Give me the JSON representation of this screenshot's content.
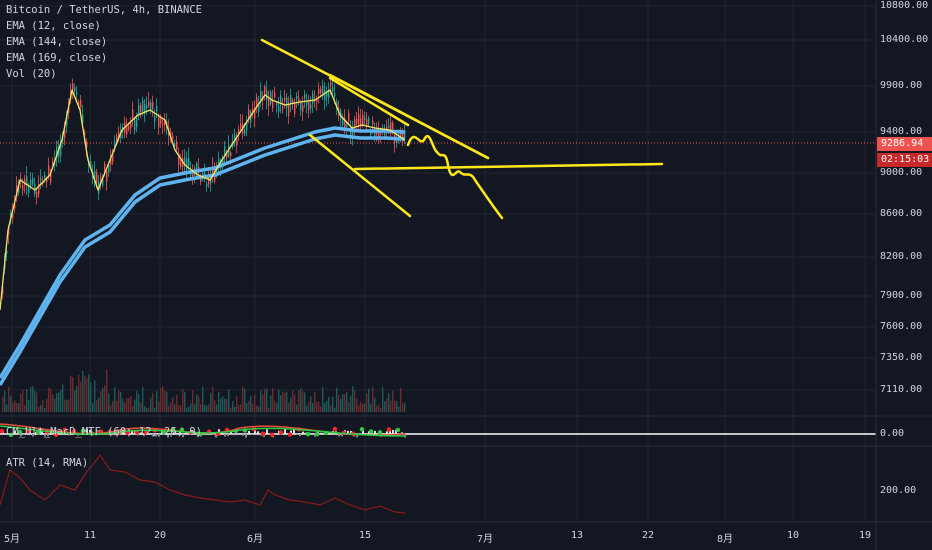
{
  "legend": {
    "symbol": "Bitcoin / TetherUS, 4h, BINANCE",
    "ema12": "EMA (12, close)",
    "ema144": "EMA (144, close)",
    "ema169": "EMA (169, close)",
    "vol": "Vol (20)"
  },
  "indicators": {
    "macd_label": "CM_Ult_MacD_MTF (60, 12, 26, 9)",
    "atr_label": "ATR (14, RMA)"
  },
  "price_axis": {
    "ticks": [
      "10800.00",
      "10400.00",
      "9900.00",
      "9400.00",
      "9000.00",
      "8600.00",
      "8200.00",
      "7900.00",
      "7600.00",
      "7350.00",
      "7110.00"
    ],
    "current_price": "9286.94",
    "countdown": "02:15:03"
  },
  "macd_axis": {
    "ticks": [
      "0.00"
    ]
  },
  "atr_axis": {
    "ticks": [
      "200.00"
    ]
  },
  "time_axis": {
    "ticks": [
      "5月",
      "11",
      "20",
      "6月",
      "15",
      "7月",
      "13",
      "22",
      "8月",
      "10",
      "19"
    ]
  },
  "colors": {
    "background": "#131722",
    "up": "#26a69a",
    "down": "#ef5350",
    "ema12": "#f5e663",
    "ema144": "#5fb4ef",
    "drawing": "#ffe81a",
    "atr": "#8b1a1a",
    "price_badge": "#ef5350"
  },
  "chart_data": {
    "type": "candlestick",
    "title": "Bitcoin / TetherUS, 4h, BINANCE",
    "x_ticks": [
      "5月",
      "11",
      "20",
      "6月",
      "15",
      "7月",
      "13",
      "22",
      "8月",
      "10",
      "19"
    ],
    "y_ticks": [
      10800,
      10400,
      9900,
      9400,
      9000,
      8600,
      8200,
      7900,
      7600,
      7350,
      7110
    ],
    "current_price": 9286.94,
    "series": [
      {
        "name": "EMA (12, close)",
        "values": [
          7700,
          8600,
          9300,
          9700,
          9500,
          8700,
          9400,
          9600,
          9300,
          9100,
          8900,
          9200,
          9600,
          10300,
          9700,
          9800,
          9700,
          9800,
          9300,
          9350,
          9300
        ]
      },
      {
        "name": "EMA (144, close)",
        "values": [
          7150,
          7600,
          8150,
          8400,
          8700,
          8850,
          9000,
          9050,
          9100,
          9150,
          9200,
          9280,
          9380,
          9450,
          9380,
          9400,
          9420
        ]
      },
      {
        "name": "EMA (169, close)",
        "values": [
          7100,
          7550,
          8100,
          8350,
          8650,
          8800,
          8950,
          9000,
          9060,
          9110,
          9170,
          9250,
          9350,
          9420,
          9360,
          9380,
          9400
        ]
      }
    ],
    "panes": [
      {
        "name": "Vol (20)"
      },
      {
        "name": "CM_Ult_MacD_MTF (60, 12, 26, 9)",
        "y_ticks": [
          0
        ]
      },
      {
        "name": "ATR (14, RMA)",
        "y_ticks": [
          200
        ]
      }
    ]
  }
}
